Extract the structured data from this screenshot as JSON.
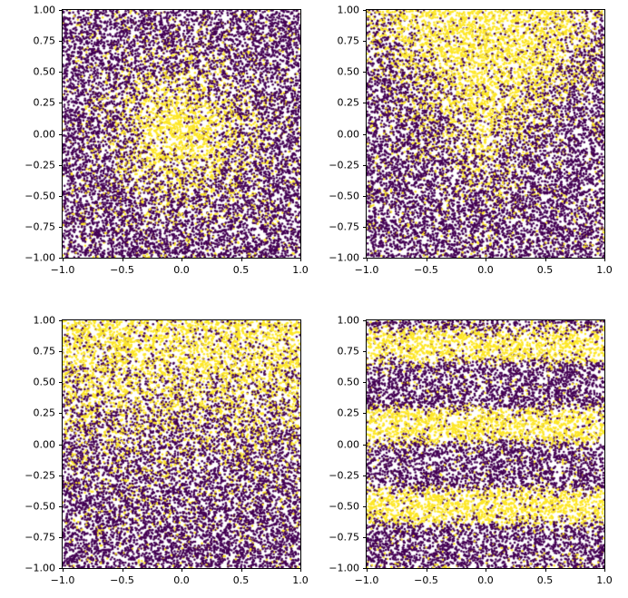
{
  "chart_data": {
    "type": "scatter",
    "layout": "2x2-grid",
    "title": "",
    "grid": false,
    "legend": false,
    "point_colors": {
      "class_low": "#440154",
      "class_high": "#fde725",
      "background": "#ffffff"
    },
    "subplots": [
      {
        "position": "top-left",
        "xlim": [
          -1,
          1
        ],
        "ylim": [
          -1,
          1
        ],
        "x_tick_values": [
          -1.0,
          -0.5,
          0.0,
          0.5,
          1.0
        ],
        "y_tick_values": [
          1.0,
          0.75,
          0.5,
          0.25,
          0.0,
          -0.25,
          -0.5,
          -0.75,
          -1.0
        ],
        "x_tick_labels": [
          "−1.0",
          "−0.5",
          "0.0",
          "0.5",
          "1.0"
        ],
        "y_tick_labels": [
          "1.00",
          "0.75",
          "0.50",
          "0.25",
          "0.00",
          "−0.25",
          "−0.50",
          "−0.75",
          "−1.00"
        ],
        "n_points": 12000,
        "distribution": "uniform-square",
        "pattern": {
          "kind": "radial",
          "sigma": 0.35,
          "noise": 0.08,
          "seed": 12345
        },
        "description": "Two-class scatter; yellow points concentrated in a circular blob centered at the origin, dark purple elsewhere"
      },
      {
        "position": "top-right",
        "xlim": [
          -1,
          1
        ],
        "ylim": [
          -1,
          1
        ],
        "x_tick_values": [
          -1.0,
          -0.5,
          0.0,
          0.5,
          1.0
        ],
        "y_tick_values": [
          1.0,
          0.75,
          0.5,
          0.25,
          0.0,
          -0.25,
          -0.5,
          -0.75,
          -1.0
        ],
        "x_tick_labels": [
          "−1.0",
          "−0.5",
          "0.0",
          "0.5",
          "1.0"
        ],
        "y_tick_labels": [
          "1.00",
          "0.75",
          "0.50",
          "0.25",
          "0.00",
          "−0.25",
          "−0.50",
          "−0.75",
          "−1.00"
        ],
        "n_points": 12000,
        "distribution": "uniform-square",
        "pattern": {
          "kind": "cone",
          "slope": 1.2,
          "offset": 0.2,
          "gain": 4,
          "noise": 0.08,
          "seed": 23456
        },
        "description": "Two-class scatter; yellow points form a cone opening upward from near the center toward the top edge"
      },
      {
        "position": "bottom-left",
        "xlim": [
          -1,
          1
        ],
        "ylim": [
          -1,
          1
        ],
        "x_tick_values": [
          -1.0,
          -0.5,
          0.0,
          0.5,
          1.0
        ],
        "y_tick_values": [
          1.0,
          0.75,
          0.5,
          0.25,
          0.0,
          -0.25,
          -0.5,
          -0.75,
          -1.0
        ],
        "x_tick_labels": [
          "−1.0",
          "−0.5",
          "0.0",
          "0.5",
          "1.0"
        ],
        "y_tick_labels": [
          "1.00",
          "0.75",
          "0.50",
          "0.25",
          "0.00",
          "−0.25",
          "−0.50",
          "−0.75",
          "−1.00"
        ],
        "n_points": 12000,
        "distribution": "uniform-square",
        "pattern": {
          "kind": "vertical-gradient",
          "threshold": 0.3,
          "gain": 3.5,
          "noise": 0.08,
          "seed": 34567
        },
        "description": "Two-class scatter; yellow point density increases toward the top of the plot, dense band near y = 1"
      },
      {
        "position": "bottom-right",
        "xlim": [
          -1,
          1
        ],
        "ylim": [
          -1,
          1
        ],
        "x_tick_values": [
          -1.0,
          -0.5,
          0.0,
          0.5,
          1.0
        ],
        "y_tick_values": [
          1.0,
          0.75,
          0.5,
          0.25,
          0.0,
          -0.25,
          -0.5,
          -0.75,
          -1.0
        ],
        "x_tick_labels": [
          "−1.0",
          "−0.5",
          "0.0",
          "0.5",
          "1.0"
        ],
        "y_tick_labels": [
          "1.00",
          "0.75",
          "0.50",
          "0.25",
          "0.00",
          "−0.25",
          "−0.50",
          "−0.75",
          "−1.00"
        ],
        "n_points": 12000,
        "distribution": "uniform-square",
        "pattern": {
          "kind": "stripes",
          "phase": 0.8,
          "period": 0.65,
          "sharpness": 5,
          "bias": 0.3,
          "noise": 0.08,
          "seed": 45678
        },
        "description": "Two-class scatter; yellow points form three horizontal bands centered near y ≈ 0.8, y ≈ 0.15 and y ≈ −0.5"
      }
    ]
  }
}
